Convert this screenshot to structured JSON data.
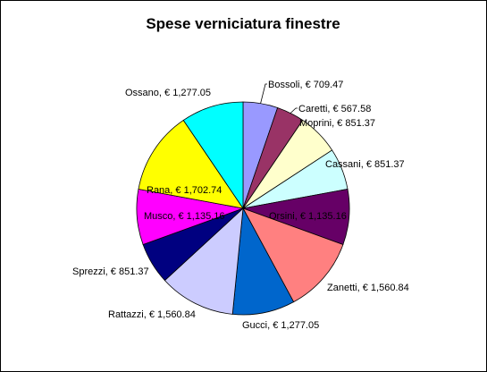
{
  "chart_data": {
    "type": "pie",
    "title": "Spese verniciatura finestre",
    "slices": [
      {
        "name": "Bossoli",
        "value": 709.47,
        "label": "Bossoli, € 709.47",
        "color": "#9999ff"
      },
      {
        "name": "Caretti",
        "value": 567.58,
        "label": "Caretti, € 567.58",
        "color": "#993366"
      },
      {
        "name": "Moprini",
        "value": 851.37,
        "label": "Moprini, € 851.37",
        "color": "#ffffcc"
      },
      {
        "name": "Cassani",
        "value": 851.37,
        "label": "Cassani, € 851.37",
        "color": "#ccffff"
      },
      {
        "name": "Orsini",
        "value": 1135.16,
        "label": "Orsini, € 1,135.16",
        "color": "#660066"
      },
      {
        "name": "Zanetti",
        "value": 1560.84,
        "label": "Zanetti, € 1,560.84",
        "color": "#ff8080"
      },
      {
        "name": "Gucci",
        "value": 1277.05,
        "label": "Gucci, € 1,277.05",
        "color": "#0066cc"
      },
      {
        "name": "Rattazzi",
        "value": 1560.84,
        "label": "Rattazzi, € 1,560.84",
        "color": "#ccccff"
      },
      {
        "name": "Sprezzi",
        "value": 851.37,
        "label": "Sprezzi, € 851.37",
        "color": "#000080"
      },
      {
        "name": "Musco",
        "value": 1135.16,
        "label": "Musco, € 1,135.16",
        "color": "#ff00ff"
      },
      {
        "name": "Rana",
        "value": 1702.74,
        "label": "Rana, € 1,702.74",
        "color": "#ffff00"
      },
      {
        "name": "Ossano",
        "value": 1277.05,
        "label": "Ossano, € 1,277.05",
        "color": "#00ffff"
      }
    ],
    "legend": "none",
    "start_angle": "12 o'clock",
    "direction": "clockwise"
  }
}
